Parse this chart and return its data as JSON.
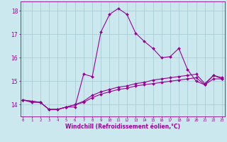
{
  "xlabel": "Windchill (Refroidissement éolien,°C)",
  "background_color": "#cce8ef",
  "grid_color": "#aacdd6",
  "line_color": "#990099",
  "x_ticks": [
    0,
    1,
    2,
    3,
    4,
    5,
    6,
    7,
    8,
    9,
    10,
    11,
    12,
    13,
    14,
    15,
    16,
    17,
    18,
    19,
    20,
    21,
    22,
    23
  ],
  "ylim": [
    13.5,
    18.4
  ],
  "xlim": [
    -0.3,
    23.3
  ],
  "yticks": [
    14,
    15,
    16,
    17,
    18
  ],
  "series": [
    {
      "x": [
        0,
        1,
        2,
        3,
        4,
        5,
        6,
        7,
        8,
        9,
        10,
        11,
        12,
        13,
        14,
        15,
        16,
        17,
        18,
        19,
        20,
        21,
        22,
        23
      ],
      "y": [
        14.2,
        14.1,
        14.1,
        13.8,
        13.8,
        13.9,
        13.9,
        15.3,
        15.2,
        17.1,
        17.85,
        18.1,
        17.85,
        17.05,
        16.7,
        16.4,
        16.0,
        16.05,
        16.4,
        15.5,
        15.0,
        14.85,
        15.25,
        15.1
      ],
      "linestyle": "-"
    },
    {
      "x": [
        0,
        1,
        2,
        3,
        4,
        5,
        6,
        7,
        8,
        9,
        10,
        11,
        12,
        13,
        14,
        15,
        16,
        17,
        18,
        19,
        20,
        21,
        22,
        23
      ],
      "y": [
        14.2,
        14.15,
        14.1,
        13.8,
        13.8,
        13.9,
        14.0,
        14.15,
        14.4,
        14.55,
        14.65,
        14.75,
        14.8,
        14.9,
        14.95,
        15.05,
        15.1,
        15.15,
        15.2,
        15.25,
        15.3,
        14.9,
        15.25,
        15.15
      ],
      "linestyle": "-"
    },
    {
      "x": [
        0,
        1,
        2,
        3,
        4,
        5,
        6,
        7,
        8,
        9,
        10,
        11,
        12,
        13,
        14,
        15,
        16,
        17,
        18,
        19,
        20,
        21,
        22,
        23
      ],
      "y": [
        14.2,
        14.15,
        14.1,
        13.8,
        13.8,
        13.9,
        14.0,
        14.1,
        14.3,
        14.45,
        14.55,
        14.65,
        14.7,
        14.8,
        14.85,
        14.9,
        14.95,
        15.0,
        15.05,
        15.1,
        15.15,
        14.85,
        15.1,
        15.1
      ],
      "linestyle": "-"
    }
  ]
}
